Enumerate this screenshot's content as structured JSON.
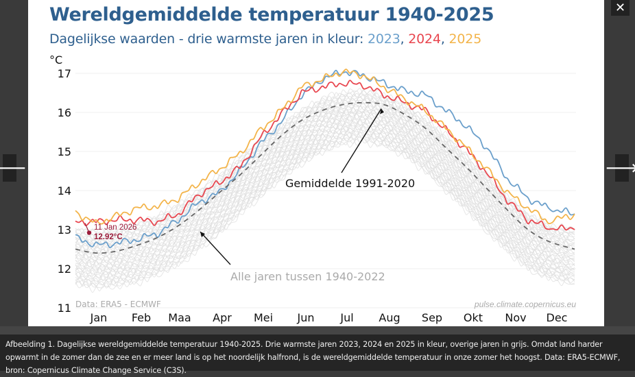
{
  "lightbox": {
    "close_glyph": "✕",
    "prev_glyph": "🡐",
    "next_glyph": "🡒",
    "caption": "Afbeelding 1. Dagelijkse wereldgemiddelde temperatuur 1940-2025. Drie warmste jaren 2023, 2024 en 2025 in kleur, overige jaren in grijs. Omdat land harder opwarmt in de zomer dan de zee en er meer land is op het noordelijk halfrond, is de wereldgemiddelde temperatuur in onze zomer het hoogst. Data: ERA5-ECMWF, bron: Copernicus Climate Change Service (C3S)."
  },
  "colors": {
    "title": "#2e5f8e",
    "y2023": "#6a9fcb",
    "y2024": "#e8464f",
    "y2025": "#f3b44a",
    "gray_band": "#dcdcdc",
    "mean_line": "#666666",
    "marker": "#9b1b3a",
    "note_gray": "#aaaaaa"
  },
  "chart_data": {
    "type": "line",
    "title": "Wereldgemiddelde temperatuur 1940-2025",
    "subtitle_prefix": "Dagelijkse waarden - drie warmste jaren in kleur: ",
    "subtitle_years": [
      "2023",
      "2024",
      "2025"
    ],
    "xlabel": "",
    "ylabel": "°C",
    "ylim": [
      11,
      17.2
    ],
    "yticks": [
      11,
      12,
      13,
      14,
      15,
      16,
      17
    ],
    "xlim": [
      0,
      365
    ],
    "xticks": [
      {
        "label": "Jan",
        "day": 15
      },
      {
        "label": "Feb",
        "day": 46
      },
      {
        "label": "Maa",
        "day": 74
      },
      {
        "label": "Apr",
        "day": 105
      },
      {
        "label": "Mei",
        "day": 135
      },
      {
        "label": "Jun",
        "day": 166
      },
      {
        "label": "Jul",
        "day": 196
      },
      {
        "label": "Aug",
        "day": 227
      },
      {
        "label": "Sep",
        "day": 258
      },
      {
        "label": "Okt",
        "day": 288
      },
      {
        "label": "Nov",
        "day": 319
      },
      {
        "label": "Dec",
        "day": 349
      }
    ],
    "grid": true,
    "legend": "subtitle",
    "x": [
      0,
      15,
      30,
      45,
      60,
      75,
      90,
      105,
      120,
      135,
      150,
      165,
      180,
      195,
      210,
      225,
      240,
      255,
      270,
      285,
      300,
      315,
      330,
      345,
      364
    ],
    "series": [
      {
        "name": "2023",
        "color_key": "y2023",
        "values": [
          12.8,
          12.6,
          12.65,
          12.75,
          12.9,
          13.25,
          13.7,
          13.95,
          14.5,
          15.2,
          15.75,
          16.45,
          16.85,
          17.05,
          16.95,
          16.75,
          16.55,
          16.45,
          16.05,
          15.65,
          15.1,
          14.3,
          13.8,
          13.55,
          13.4
        ]
      },
      {
        "name": "2024",
        "color_key": "y2024",
        "values": [
          13.2,
          13.2,
          13.25,
          13.25,
          13.2,
          13.4,
          13.9,
          14.2,
          14.6,
          15.35,
          15.95,
          16.5,
          16.65,
          16.75,
          16.7,
          16.45,
          16.25,
          16.05,
          15.55,
          15.05,
          14.45,
          13.75,
          13.25,
          13.05,
          13.0
        ]
      },
      {
        "name": "2025",
        "color_key": "y2025",
        "values": [
          13.45,
          13.15,
          13.35,
          13.55,
          13.6,
          13.8,
          14.2,
          14.55,
          14.95,
          15.55,
          16.05,
          16.65,
          16.85,
          17.05,
          16.95,
          16.65,
          16.35,
          16.05,
          15.6,
          15.1,
          14.55,
          13.95,
          13.55,
          13.2,
          13.4
        ]
      },
      {
        "name": "Gemiddelde 1991-2020",
        "color_key": "mean_line",
        "dashed": true,
        "values": [
          12.5,
          12.4,
          12.45,
          12.6,
          12.8,
          13.1,
          13.5,
          13.95,
          14.4,
          14.9,
          15.4,
          15.8,
          16.05,
          16.2,
          16.25,
          16.2,
          15.95,
          15.6,
          15.1,
          14.6,
          14.05,
          13.5,
          13.0,
          12.7,
          12.5
        ]
      }
    ],
    "background_band": {
      "name": "Alle jaren tussen 1940-2022",
      "upper": [
        13.0,
        12.95,
        13.0,
        13.15,
        13.35,
        13.65,
        14.0,
        14.4,
        14.85,
        15.3,
        15.7,
        16.05,
        16.35,
        16.5,
        16.55,
        16.45,
        16.2,
        15.85,
        15.4,
        14.9,
        14.4,
        13.85,
        13.4,
        13.1,
        13.0
      ],
      "lower": [
        11.6,
        11.5,
        11.55,
        11.65,
        11.85,
        12.1,
        12.5,
        12.9,
        13.4,
        13.85,
        14.3,
        14.7,
        15.0,
        15.2,
        15.25,
        15.15,
        14.9,
        14.5,
        14.0,
        13.5,
        12.95,
        12.45,
        12.0,
        11.75,
        11.6
      ]
    },
    "annotations": [
      {
        "id": "mean_label",
        "text": "Gemiddelde 1991-2020",
        "points_to": {
          "day": 225,
          "value": 16.2
        }
      },
      {
        "id": "band_label",
        "text": "Alle jaren tussen 1940-2022",
        "points_to": {
          "day": 88,
          "value": 13.05
        }
      },
      {
        "id": "latest_point",
        "date_text": "11 Jan 2026",
        "value_text": "12.92°C",
        "day": 10,
        "value": 12.92
      }
    ],
    "source_left": "Data: ERA5 - ECMWF",
    "source_right": "pulse.climate.copernicus.eu"
  }
}
